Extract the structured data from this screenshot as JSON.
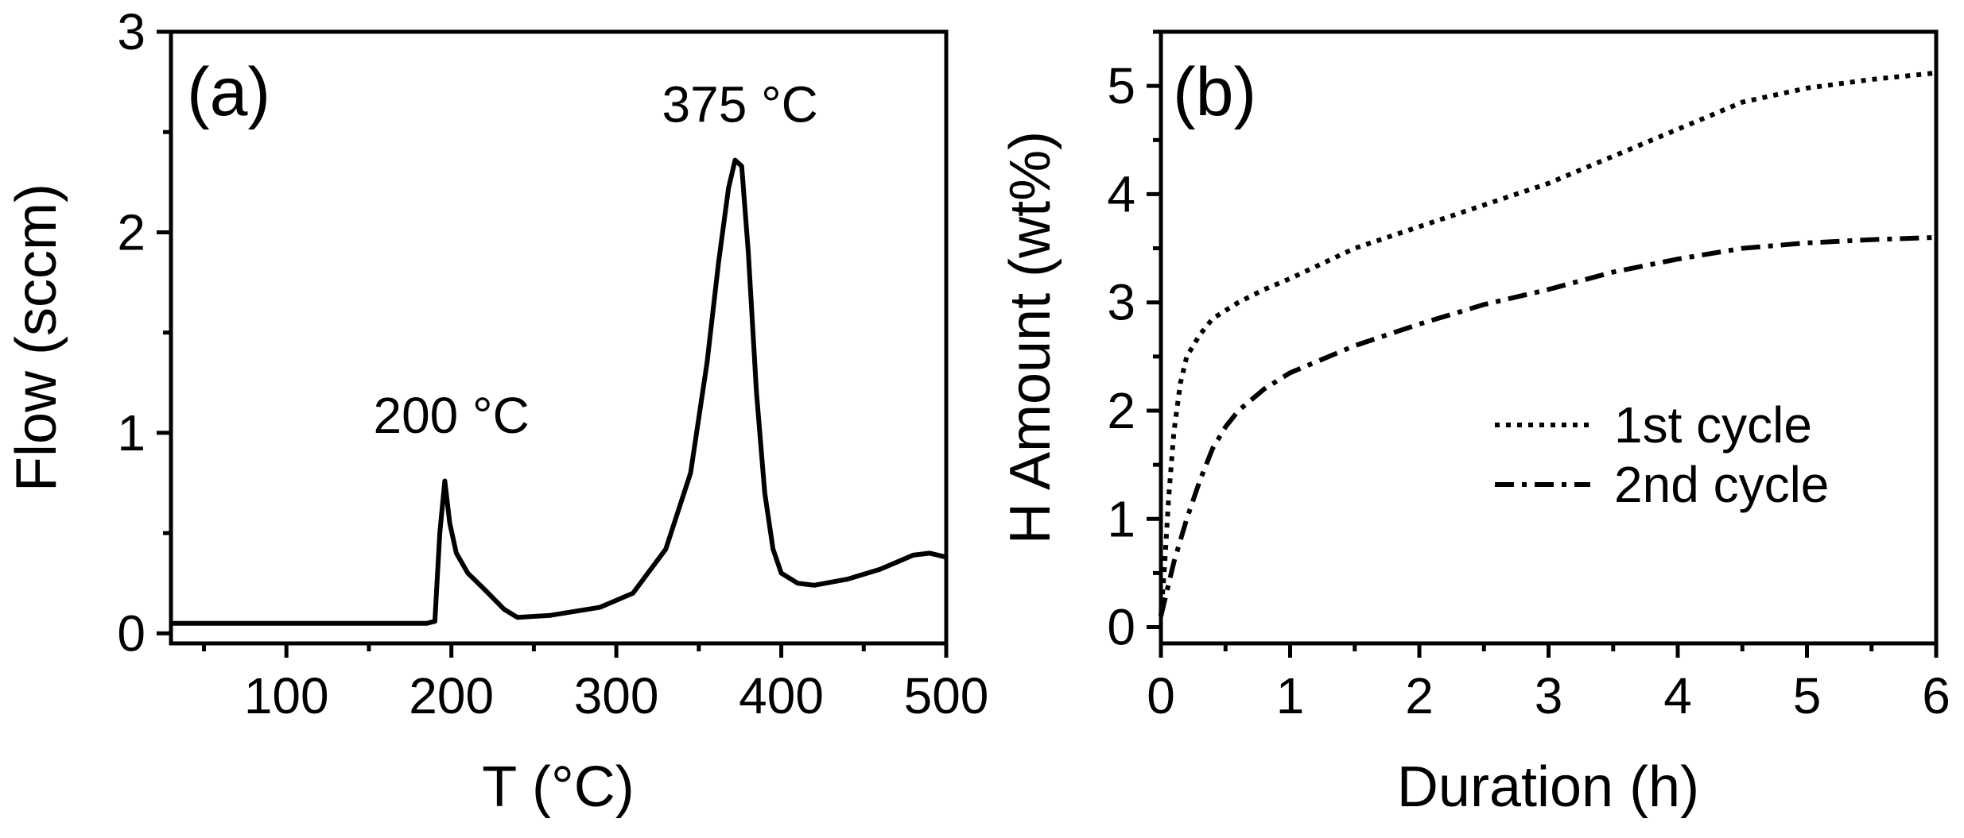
{
  "chart_data": [
    {
      "panel": "a",
      "type": "line",
      "panel_label": "(a)",
      "xlabel": "T (°C)",
      "ylabel": "Flow (sccm)",
      "xlim": [
        30,
        500
      ],
      "ylim": [
        -0.05,
        3
      ],
      "xticks": [
        100,
        200,
        300,
        400,
        500
      ],
      "yticks": [
        0,
        1,
        2,
        3
      ],
      "annotations": [
        {
          "text": "200 °C",
          "x": 200,
          "y": 1.0
        },
        {
          "text": "375 °C",
          "x": 375,
          "y": 2.55
        }
      ],
      "series": [
        {
          "name": "flow",
          "style": "solid",
          "x": [
            30,
            100,
            150,
            185,
            190,
            193,
            196,
            199,
            203,
            210,
            220,
            232,
            240,
            260,
            290,
            310,
            330,
            345,
            355,
            362,
            368,
            372,
            376,
            380,
            385,
            390,
            395,
            400,
            410,
            420,
            440,
            460,
            480,
            490,
            500
          ],
          "y": [
            0.05,
            0.05,
            0.05,
            0.05,
            0.06,
            0.5,
            0.76,
            0.55,
            0.4,
            0.3,
            0.22,
            0.12,
            0.08,
            0.09,
            0.13,
            0.2,
            0.42,
            0.8,
            1.35,
            1.85,
            2.22,
            2.36,
            2.33,
            1.9,
            1.2,
            0.7,
            0.42,
            0.3,
            0.25,
            0.24,
            0.27,
            0.32,
            0.39,
            0.4,
            0.38
          ]
        }
      ]
    },
    {
      "panel": "b",
      "type": "line",
      "panel_label": "(b)",
      "xlabel": "Duration (h)",
      "ylabel": "H Amount (wt%)",
      "xlim": [
        0,
        6
      ],
      "ylim": [
        -0.15,
        5.5
      ],
      "xticks": [
        0,
        1,
        2,
        3,
        4,
        5,
        6
      ],
      "yticks": [
        0,
        1,
        2,
        3,
        4,
        5
      ],
      "legend": "center-right",
      "series": [
        {
          "name": "1st cycle",
          "style": "dotted",
          "x": [
            0,
            0.03,
            0.06,
            0.1,
            0.15,
            0.2,
            0.3,
            0.4,
            0.6,
            0.8,
            1.0,
            1.5,
            2.0,
            2.5,
            3.0,
            3.5,
            4.0,
            4.5,
            5.0,
            5.5,
            6.0
          ],
          "y": [
            0.1,
            0.6,
            1.2,
            1.8,
            2.25,
            2.5,
            2.7,
            2.85,
            3.0,
            3.12,
            3.22,
            3.5,
            3.7,
            3.9,
            4.1,
            4.35,
            4.6,
            4.85,
            4.98,
            5.06,
            5.12
          ]
        },
        {
          "name": "2nd cycle",
          "style": "dashdot",
          "x": [
            0,
            0.05,
            0.1,
            0.2,
            0.3,
            0.4,
            0.5,
            0.6,
            0.8,
            1.0,
            1.5,
            2.0,
            2.5,
            3.0,
            3.5,
            4.0,
            4.5,
            5.0,
            5.5,
            6.0
          ],
          "y": [
            0.1,
            0.35,
            0.6,
            1.0,
            1.35,
            1.65,
            1.85,
            2.0,
            2.2,
            2.35,
            2.6,
            2.8,
            2.98,
            3.12,
            3.28,
            3.4,
            3.5,
            3.55,
            3.58,
            3.6
          ]
        }
      ]
    }
  ]
}
